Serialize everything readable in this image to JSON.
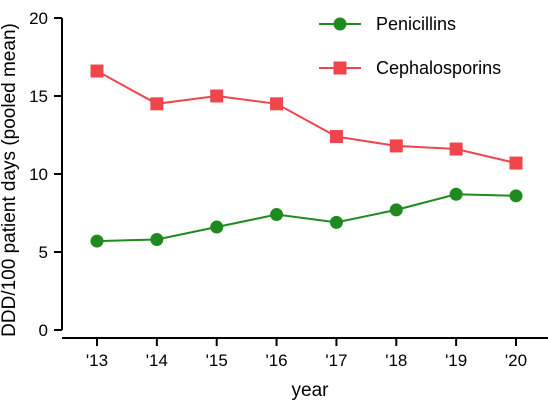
{
  "chart_data": {
    "type": "line",
    "title": "",
    "xlabel": "year",
    "ylabel": "DDD/100 patient days (pooled mean)",
    "categories": [
      "'13",
      "'14",
      "'15",
      "'16",
      "'17",
      "'18",
      "'19",
      "'20"
    ],
    "ylim": [
      0,
      20
    ],
    "yticks": [
      0,
      5,
      10,
      15,
      20
    ],
    "grid": false,
    "legend_position": "top-right",
    "series": [
      {
        "name": "Penicillins",
        "color": "#1f8a1f",
        "marker": "circle",
        "values": [
          5.7,
          5.8,
          6.6,
          7.4,
          6.9,
          7.7,
          8.7,
          8.6
        ]
      },
      {
        "name": "Cephalosporins",
        "color": "#f0464b",
        "marker": "square",
        "values": [
          16.6,
          14.5,
          15.0,
          14.5,
          12.4,
          11.8,
          11.6,
          10.7
        ]
      }
    ]
  }
}
